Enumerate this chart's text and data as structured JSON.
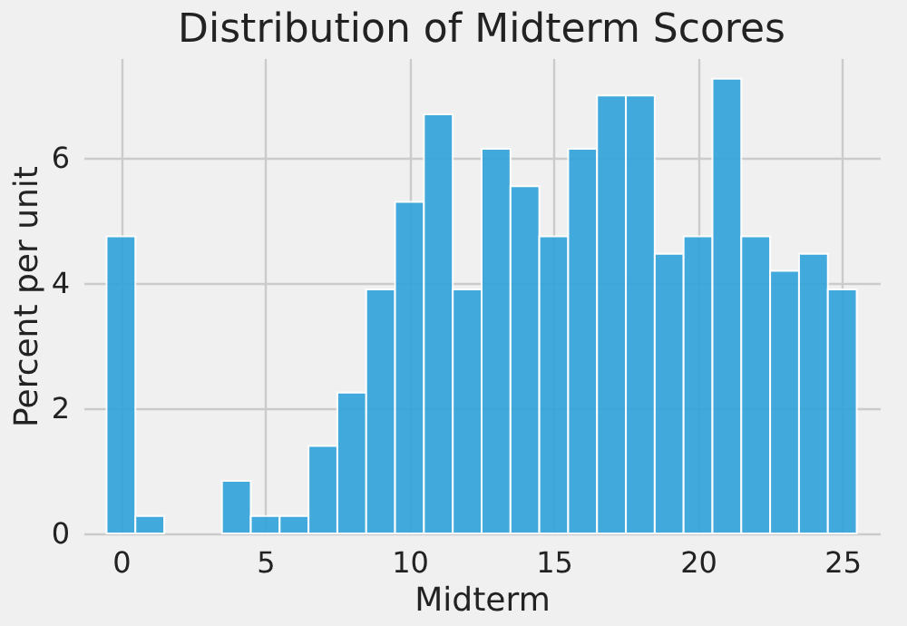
{
  "chart_data": {
    "type": "histogram",
    "title": "Distribution of Midterm Scores",
    "xlabel": "Midterm",
    "ylabel": "Percent per unit",
    "bins": [
      -0.5,
      0.5,
      1.5,
      2.5,
      3.5,
      4.5,
      5.5,
      6.5,
      7.5,
      8.5,
      9.5,
      10.5,
      11.5,
      12.5,
      13.5,
      14.5,
      15.5,
      16.5,
      17.5,
      18.5,
      19.5,
      20.5,
      21.5,
      22.5,
      23.5,
      24.5,
      25.5
    ],
    "values": [
      4.75,
      0.28,
      0,
      0,
      0.84,
      0.28,
      0.28,
      1.4,
      2.25,
      3.9,
      5.3,
      6.7,
      3.9,
      6.15,
      5.55,
      4.75,
      6.15,
      7.0,
      7.0,
      4.47,
      4.75,
      7.27,
      4.75,
      4.2,
      4.47,
      3.9
    ],
    "color": "#30a2da",
    "xlim": [
      -1.3,
      26.3
    ],
    "xticks": [
      0,
      5,
      10,
      15,
      20,
      25
    ],
    "ylim": [
      0,
      7.6
    ],
    "yticks": [
      0,
      2,
      4,
      6
    ],
    "grid": true
  }
}
